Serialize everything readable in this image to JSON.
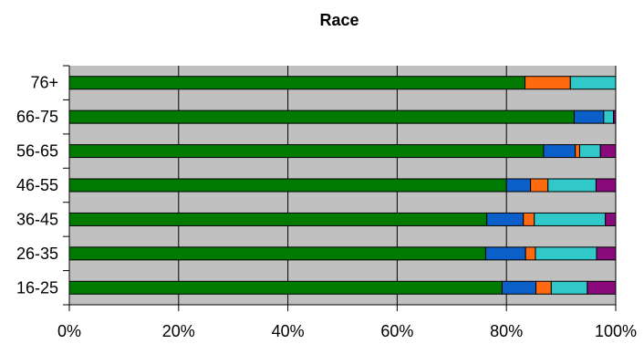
{
  "chart_data": {
    "type": "bar",
    "orientation": "horizontal",
    "stacked": "percent",
    "title": "Race",
    "xlabel": "",
    "ylabel": "",
    "xlim": [
      0,
      100
    ],
    "x_ticks": [
      "0%",
      "20%",
      "40%",
      "60%",
      "80%",
      "100%"
    ],
    "x_tick_values": [
      0,
      20,
      40,
      60,
      80,
      100
    ],
    "categories": [
      "16-25",
      "26-35",
      "36-45",
      "46-55",
      "56-65",
      "66-75",
      "76+"
    ],
    "series": [
      {
        "color": "#007a00",
        "values": [
          79.2,
          76.2,
          76.4,
          80.0,
          86.8,
          92.4,
          83.4
        ]
      },
      {
        "color": "#0a5fc8",
        "values": [
          6.2,
          7.3,
          6.7,
          4.4,
          5.8,
          5.4,
          0.0
        ]
      },
      {
        "color": "#ff6a10",
        "values": [
          2.8,
          1.8,
          2.0,
          3.2,
          0.8,
          0.0,
          8.3
        ]
      },
      {
        "color": "#30c8c8",
        "values": [
          6.6,
          11.2,
          13.0,
          8.8,
          3.8,
          1.8,
          8.3
        ]
      },
      {
        "color": "#8a0a7c",
        "values": [
          5.2,
          3.5,
          1.9,
          3.6,
          2.8,
          0.4,
          0.0
        ]
      }
    ],
    "grid": true,
    "legend": "none",
    "plot_background": "#c0c0c0"
  }
}
